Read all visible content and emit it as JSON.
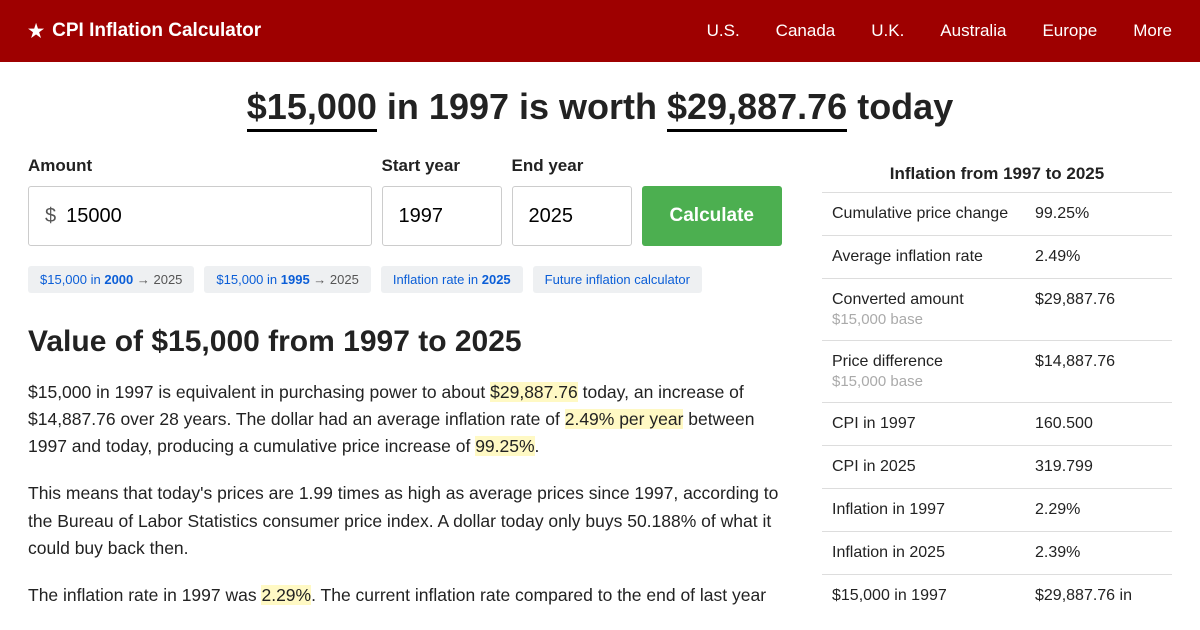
{
  "colors": {
    "navbar_bg": "#9e0000",
    "btn_bg": "#4caf50",
    "link": "#0b5ed7",
    "highlight": "#fff9c4",
    "border": "#ddd"
  },
  "nav": {
    "brand": "CPI Inflation Calculator",
    "links": [
      "U.S.",
      "Canada",
      "U.K.",
      "Australia",
      "Europe",
      "More"
    ]
  },
  "headline": {
    "amount": "$15,000",
    "mid": " in 1997 is worth ",
    "result": "$29,887.76",
    "suffix": " today"
  },
  "form": {
    "amount_label": "Amount",
    "amount_value": "15000",
    "start_label": "Start year",
    "start_value": "1997",
    "end_label": "End year",
    "end_value": "2025",
    "button": "Calculate"
  },
  "chips": [
    {
      "prefix": "$15,000 in ",
      "bold": "2000",
      "arrow": " → 2025"
    },
    {
      "prefix": "$15,000 in ",
      "bold": "1995",
      "arrow": " → 2025"
    },
    {
      "prefix": "Inflation rate in ",
      "bold": "2025",
      "arrow": ""
    },
    {
      "prefix": "Future inflation calculator",
      "bold": "",
      "arrow": ""
    }
  ],
  "section_title": "Value of $15,000 from 1997 to 2025",
  "p1": {
    "a": "$15,000 in 1997 is equivalent in purchasing power to about ",
    "h1": "$29,887.76",
    "b": " today, an increase of $14,887.76 over 28 years. The dollar had an average inflation rate of ",
    "h2": "2.49% per year",
    "c": " between 1997 and today, producing a cumulative price increase of ",
    "h3": "99.25%",
    "d": "."
  },
  "p2": "This means that today's prices are 1.99 times as high as average prices since 1997, according to the Bureau of Labor Statistics consumer price index. A dollar today only buys 50.188% of what it could buy back then.",
  "p3": {
    "a": "The inflation rate in 1997 was ",
    "h1": "2.29%",
    "b": ". The current inflation rate compared to the end of last year"
  },
  "side": {
    "title": "Inflation from 1997 to 2025",
    "rows": [
      {
        "label": "Cumulative price change",
        "sub": "",
        "value": "99.25%"
      },
      {
        "label": "Average inflation rate",
        "sub": "",
        "value": "2.49%"
      },
      {
        "label": "Converted amount",
        "sub": "$15,000 base",
        "value": "$29,887.76"
      },
      {
        "label": "Price difference",
        "sub": "$15,000 base",
        "value": "$14,887.76"
      },
      {
        "label": "CPI in 1997",
        "sub": "",
        "value": "160.500"
      },
      {
        "label": "CPI in 2025",
        "sub": "",
        "value": "319.799"
      },
      {
        "label": "Inflation in 1997",
        "sub": "",
        "value": "2.29%"
      },
      {
        "label": "Inflation in 2025",
        "sub": "",
        "value": "2.39%"
      },
      {
        "label": "$15,000 in 1997",
        "sub": "",
        "value": "$29,887.76 in"
      }
    ]
  }
}
